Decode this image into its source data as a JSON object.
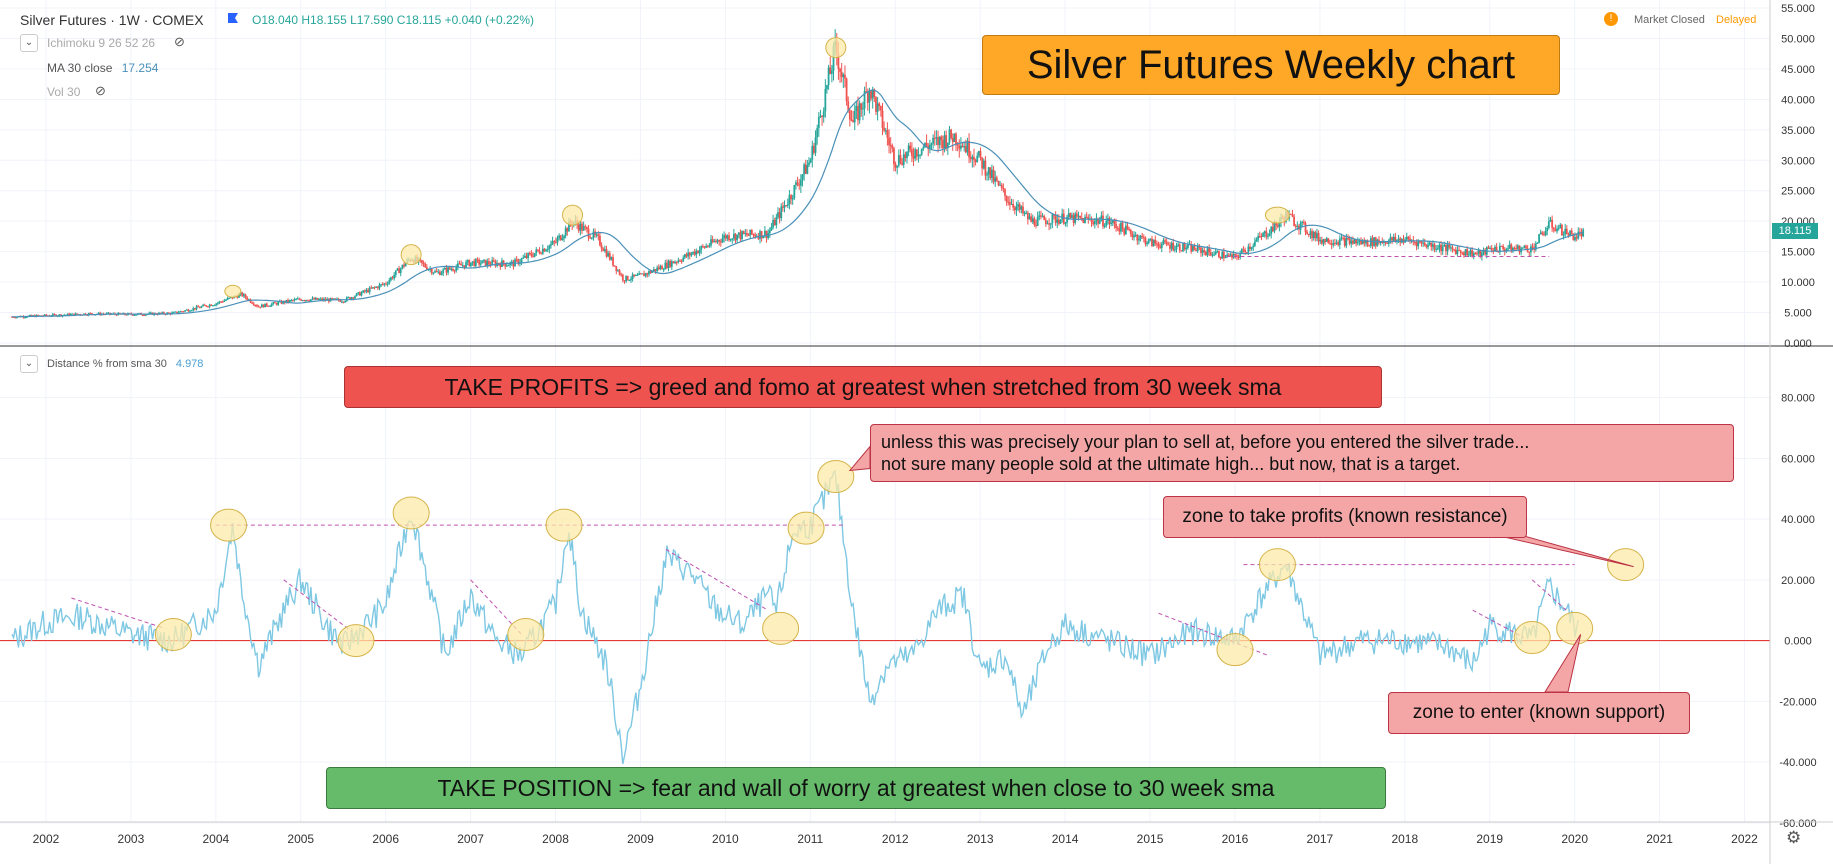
{
  "header": {
    "symbol": "Silver Futures · 1W · COMEX",
    "ohlc": "O18.040  H18.155  L17.590  C18.115  +0.040 (+0.22%)",
    "status_icon": "!",
    "status": "Market Closed",
    "delayed": "Delayed"
  },
  "indicators": {
    "ichimoku": "Ichimoku 9 26 52 26",
    "ma_label": "MA 30 close",
    "ma_value": "17.254",
    "vol": "Vol 30",
    "dist_label": "Distance % from sma 30",
    "dist_value": "4.978"
  },
  "price_tag": "18.115",
  "annotations": {
    "title": "Silver Futures Weekly chart",
    "take_profits": "TAKE PROFITS => greed and fomo at greatest when stretched from 30 week sma",
    "take_position": "TAKE POSITION => fear and wall of worry at greatest when close to 30 week sma",
    "unless_line1": "unless this was precisely your plan to sell at, before you entered the silver trade...",
    "unless_line2": "not sure many people sold at the ultimate high... but now, that is a target.",
    "zone_profits": "zone to take profits (known resistance)",
    "zone_enter": "zone to enter (known support)"
  },
  "colors": {
    "up": "#26a69a",
    "down": "#ef5350",
    "ma": "#4a90b8",
    "distance": "#7ec8e3",
    "zero_line": "#e53935",
    "title_box": "#ffa726",
    "profits_box": "#ef5350",
    "position_box": "#66bb6a",
    "callout_box": "#f4a6a6",
    "highlight": "#fde9a8",
    "price_tag": "#26a69a"
  },
  "chart_data": [
    {
      "type": "line",
      "name": "price",
      "x": [
        2001.6,
        2002.0,
        2002.5,
        2003.0,
        2003.5,
        2004.0,
        2004.3,
        2004.5,
        2005.0,
        2005.5,
        2006.0,
        2006.3,
        2006.6,
        2007.0,
        2007.5,
        2008.0,
        2008.2,
        2008.5,
        2008.8,
        2009.0,
        2009.5,
        2010.0,
        2010.5,
        2010.8,
        2011.0,
        2011.3,
        2011.5,
        2011.7,
        2012.0,
        2012.3,
        2012.7,
        2013.0,
        2013.3,
        2013.6,
        2014.0,
        2014.5,
        2015.0,
        2015.5,
        2016.0,
        2016.5,
        2016.6,
        2017.0,
        2017.5,
        2018.0,
        2018.5,
        2018.9,
        2019.0,
        2019.5,
        2019.7,
        2020.0,
        2020.1
      ],
      "values": [
        4.3,
        4.5,
        4.8,
        4.7,
        4.9,
        6.5,
        8.0,
        6.0,
        7.2,
        7.0,
        9.8,
        14.0,
        11.5,
        13.2,
        13.0,
        16.5,
        20.0,
        17.0,
        10.5,
        11.0,
        14.0,
        17.5,
        18.0,
        25.0,
        30.0,
        48.5,
        36.0,
        42.0,
        30.0,
        32.0,
        34.0,
        30.0,
        24.0,
        20.0,
        20.5,
        20.0,
        16.5,
        15.5,
        14.0,
        19.5,
        21.0,
        17.0,
        16.5,
        17.0,
        15.5,
        14.5,
        15.5,
        15.5,
        19.5,
        17.5,
        18.1
      ],
      "ylim": [
        0,
        55
      ],
      "y_ticks": [
        "55.000",
        "50.000",
        "45.000",
        "40.000",
        "35.000",
        "30.000",
        "25.000",
        "20.000",
        "15.000",
        "10.000",
        "5.000",
        "0.000"
      ]
    },
    {
      "type": "line",
      "name": "Distance % from sma 30",
      "x": [
        2001.6,
        2002.0,
        2002.4,
        2002.8,
        2003.0,
        2003.5,
        2004.0,
        2004.2,
        2004.3,
        2004.5,
        2004.8,
        2005.0,
        2005.3,
        2005.5,
        2005.8,
        2006.0,
        2006.3,
        2006.5,
        2006.7,
        2007.0,
        2007.3,
        2007.6,
        2008.0,
        2008.15,
        2008.3,
        2008.6,
        2008.8,
        2009.0,
        2009.3,
        2009.6,
        2009.9,
        2010.2,
        2010.5,
        2010.6,
        2010.8,
        2011.0,
        2011.3,
        2011.5,
        2011.7,
        2011.9,
        2012.2,
        2012.5,
        2012.8,
        2013.0,
        2013.3,
        2013.5,
        2013.8,
        2014.0,
        2014.5,
        2015.0,
        2015.5,
        2016.0,
        2016.3,
        2016.6,
        2016.8,
        2017.0,
        2017.5,
        2018.0,
        2018.5,
        2018.8,
        2019.0,
        2019.5,
        2019.7,
        2019.9,
        2020.05
      ],
      "values": [
        0,
        6,
        8,
        4,
        2,
        0,
        10,
        38,
        18,
        -8,
        10,
        20,
        5,
        -2,
        6,
        12,
        43,
        20,
        -5,
        15,
        0,
        -5,
        12,
        38,
        10,
        -8,
        -38,
        -15,
        28,
        22,
        10,
        5,
        15,
        10,
        36,
        38,
        54,
        10,
        -20,
        -8,
        -5,
        10,
        15,
        -10,
        -5,
        -25,
        -2,
        5,
        0,
        -5,
        3,
        0,
        14,
        25,
        10,
        -5,
        0,
        0,
        -2,
        -8,
        5,
        0,
        18,
        10,
        2
      ],
      "ylim": [
        -65,
        95
      ],
      "y_ticks": [
        "80.000",
        "60.000",
        "40.000",
        "20.000",
        "0.000",
        "-20.000",
        "-40.000",
        "-60.000"
      ]
    }
  ],
  "x_axis": [
    "2002",
    "2003",
    "2004",
    "2005",
    "2006",
    "2007",
    "2008",
    "2009",
    "2010",
    "2011",
    "2012",
    "2013",
    "2014",
    "2015",
    "2016",
    "2017",
    "2018",
    "2019",
    "2020",
    "2021",
    "2022"
  ]
}
